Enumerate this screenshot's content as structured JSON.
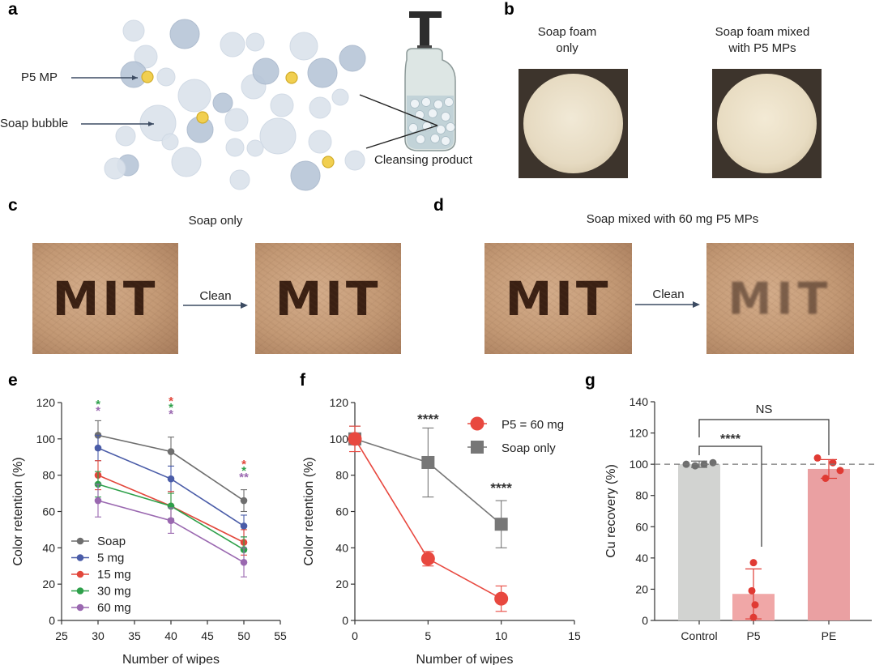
{
  "panel_letters": [
    "a",
    "b",
    "c",
    "d",
    "e",
    "f",
    "g"
  ],
  "panel_a": {
    "labels": {
      "mp": "P5 MP",
      "bubble": "Soap bubble",
      "product": "Cleansing product"
    }
  },
  "panel_b": {
    "left_caption": "Soap foam\nonly",
    "right_caption": "Soap foam mixed\nwith P5 MPs"
  },
  "panel_c": {
    "title": "Soap only",
    "arrow_label": "Clean",
    "text": "MIT"
  },
  "panel_d": {
    "title": "Soap mixed with 60 mg P5 MPs",
    "arrow_label": "Clean",
    "text": "MIT"
  },
  "colors": {
    "soap": "#6e6e6e",
    "mg5": "#4a5ca8",
    "mg15": "#e2473b",
    "mg30": "#2ea04a",
    "mg60": "#9a68b0",
    "p5": "#e8483f",
    "soap_only": "#777777",
    "control_bar": "#d2d3d1",
    "p5_bar": "#f0a7a7",
    "pe_bar": "#eaa0a2"
  },
  "chart_data": [
    {
      "id": "e",
      "type": "line",
      "xlabel": "Number of wipes",
      "ylabel": "Color retention (%)",
      "xlim": [
        25,
        55
      ],
      "ylim": [
        0,
        120
      ],
      "xticks": [
        25,
        30,
        35,
        40,
        45,
        50,
        55
      ],
      "yticks": [
        0,
        20,
        40,
        60,
        80,
        100,
        120
      ],
      "x": [
        30,
        40,
        50
      ],
      "legend_position": "bottom-left",
      "series": [
        {
          "name": "Soap",
          "values": [
            102,
            93,
            66
          ],
          "errors": [
            8,
            8,
            6
          ],
          "color": "#6e6e6e"
        },
        {
          "name": "5 mg",
          "values": [
            95,
            78,
            52
          ],
          "errors": [
            7,
            7,
            6
          ],
          "color": "#4a5ca8"
        },
        {
          "name": "15 mg",
          "values": [
            80,
            63,
            43
          ],
          "errors": [
            8,
            8,
            7
          ],
          "color": "#e2473b"
        },
        {
          "name": "30 mg",
          "values": [
            75,
            63,
            39
          ],
          "errors": [
            7,
            7,
            7
          ],
          "color": "#2ea04a"
        },
        {
          "name": "60 mg",
          "values": [
            66,
            55,
            32
          ],
          "errors": [
            9,
            7,
            8
          ],
          "color": "#9a68b0"
        }
      ],
      "annotations": [
        {
          "x": 30,
          "marks": [
            {
              "text": "*",
              "color": "#2ea04a"
            },
            {
              "text": "*",
              "color": "#9a68b0"
            }
          ]
        },
        {
          "x": 40,
          "marks": [
            {
              "text": "*",
              "color": "#e2473b"
            },
            {
              "text": "*",
              "color": "#2ea04a"
            },
            {
              "text": "*",
              "color": "#9a68b0"
            }
          ]
        },
        {
          "x": 50,
          "marks": [
            {
              "text": "*",
              "color": "#e2473b"
            },
            {
              "text": "*",
              "color": "#2ea04a"
            },
            {
              "text": "**",
              "color": "#9a68b0"
            }
          ]
        }
      ]
    },
    {
      "id": "f",
      "type": "line",
      "xlabel": "Number of wipes",
      "ylabel": "Color retention (%)",
      "xlim": [
        0,
        15
      ],
      "ylim": [
        0,
        120
      ],
      "xticks": [
        0,
        5,
        10,
        15
      ],
      "yticks": [
        0,
        20,
        40,
        60,
        80,
        100,
        120
      ],
      "x": [
        0,
        5,
        10
      ],
      "legend_position": "top-right",
      "series": [
        {
          "name": "P5 = 60 mg",
          "values": [
            100,
            34,
            12
          ],
          "errors": [
            7,
            4,
            7
          ],
          "color": "#e8483f",
          "marker": "circle"
        },
        {
          "name": "Soap only",
          "values": [
            100,
            87,
            53
          ],
          "errors": [
            7,
            19,
            13
          ],
          "color": "#777777",
          "marker": "square"
        }
      ],
      "annotations": [
        {
          "x": 5,
          "y": 112,
          "text": "****"
        },
        {
          "x": 10,
          "y": 74,
          "text": "****"
        }
      ]
    },
    {
      "id": "g",
      "type": "bar",
      "ylabel": "Cu recovery (%)",
      "ylim": [
        0,
        140
      ],
      "yticks": [
        0,
        20,
        40,
        60,
        80,
        100,
        120,
        140
      ],
      "categories": [
        "Control",
        "P5",
        "PE"
      ],
      "values": [
        100,
        17,
        97
      ],
      "errors": [
        2,
        16,
        6
      ],
      "points": [
        [
          100,
          99,
          100,
          101
        ],
        [
          37,
          19,
          10,
          2
        ],
        [
          104,
          101,
          96,
          91
        ]
      ],
      "reference_line": 100,
      "brackets": [
        {
          "from": "Control",
          "to": "PE",
          "text": "NS"
        },
        {
          "from": "Control",
          "to": "P5",
          "text": "****"
        }
      ]
    }
  ]
}
